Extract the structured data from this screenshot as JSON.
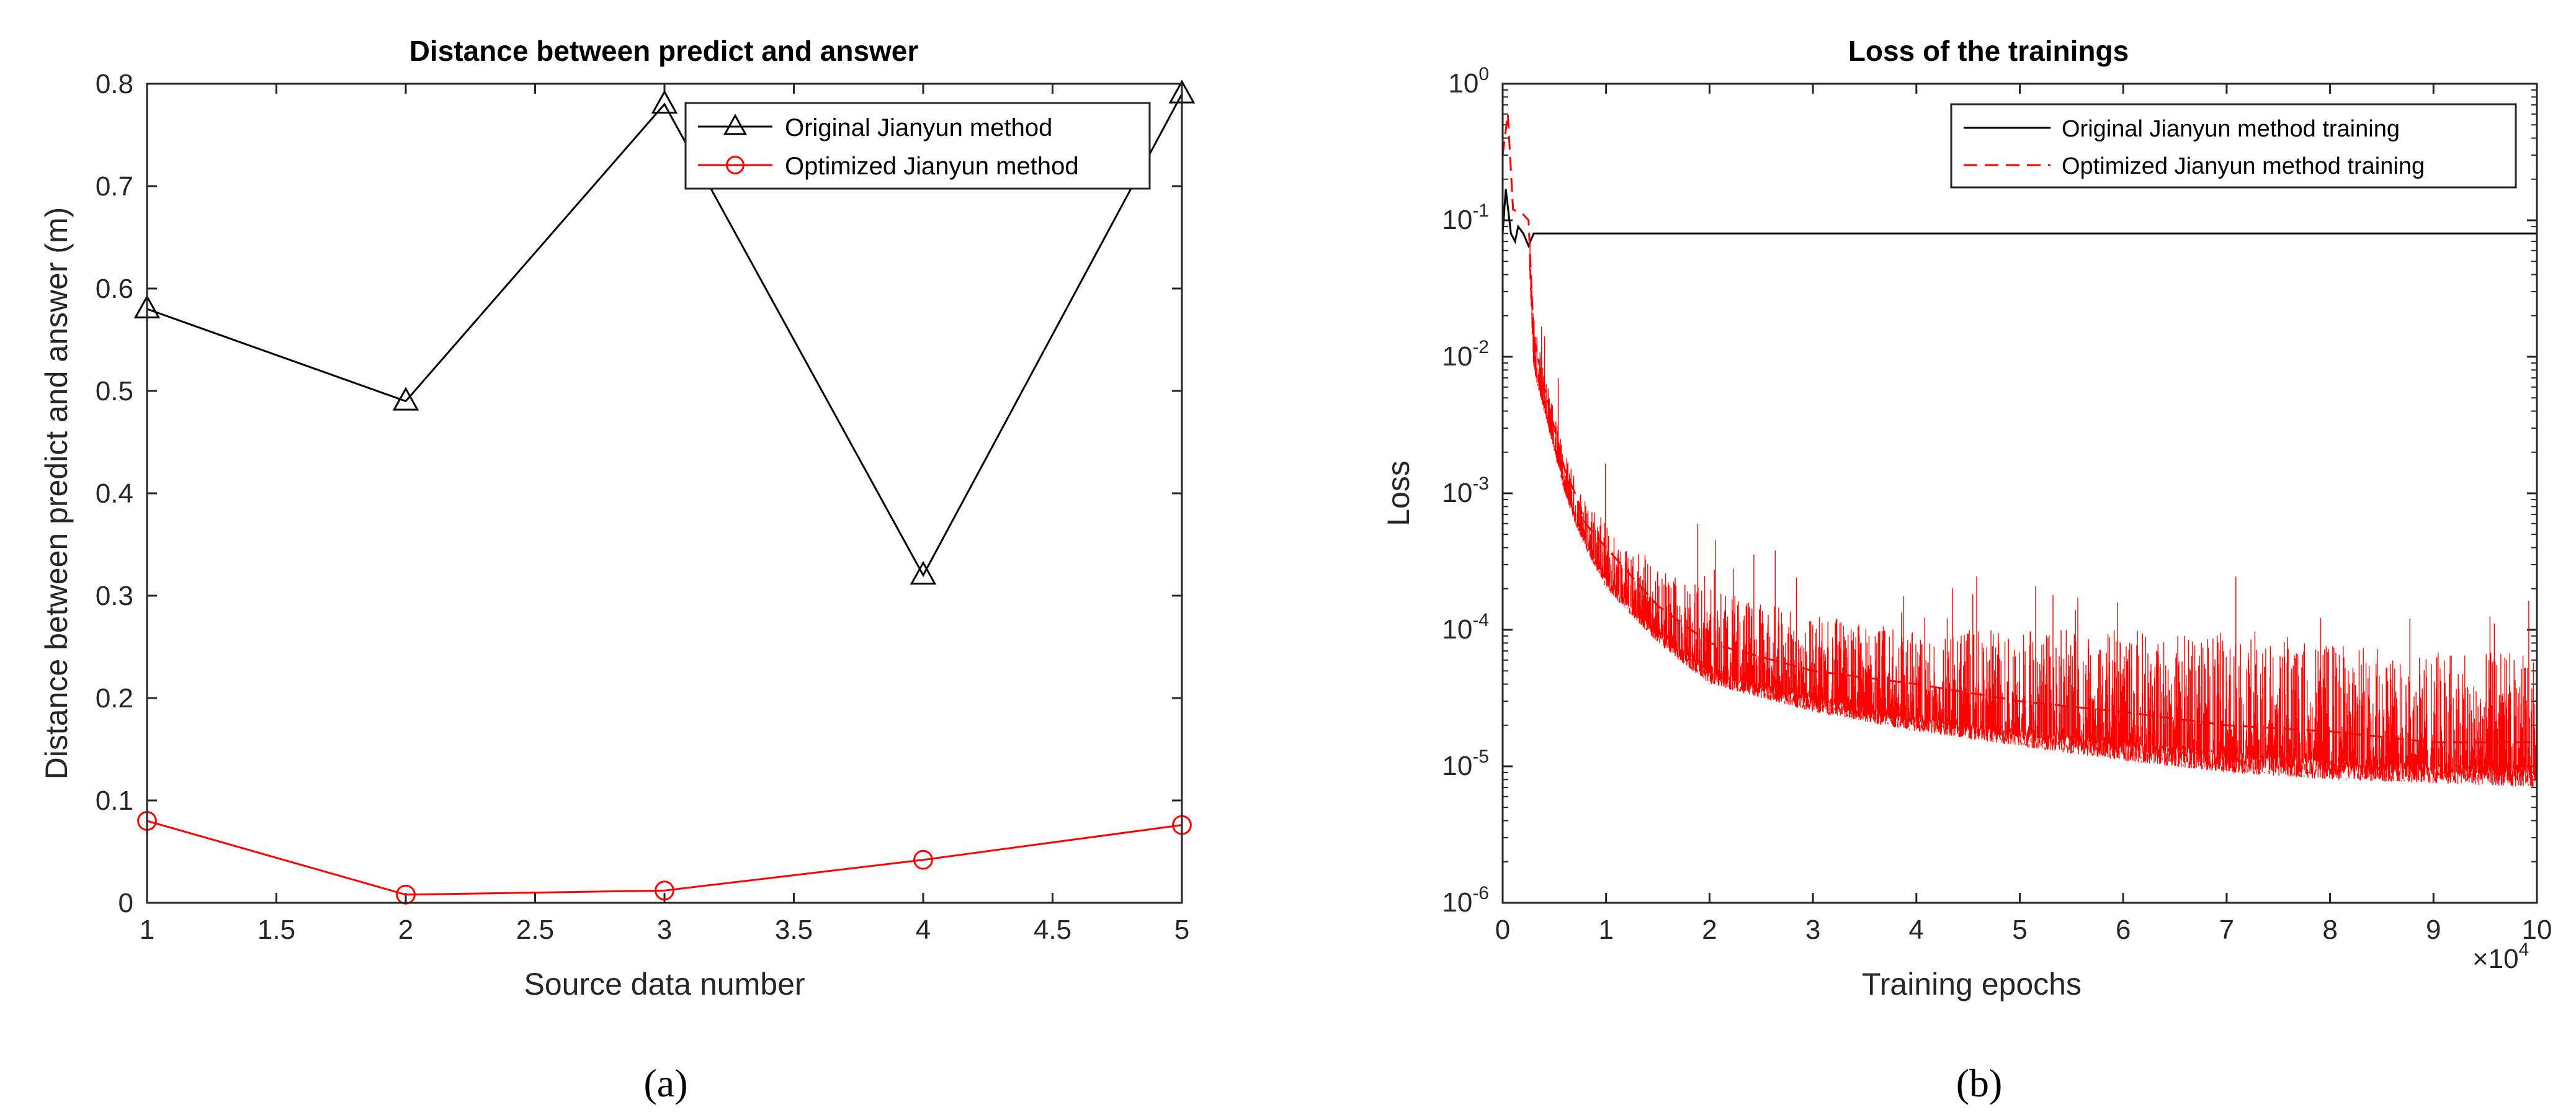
{
  "panel_a_label": "(a)",
  "panel_b_label": "(b)",
  "chart_data": [
    {
      "type": "line",
      "title": "Distance between predict and answer",
      "xlabel": "Source data number",
      "ylabel": "Distance between predict and answer (m)",
      "xlim": [
        1,
        5
      ],
      "ylim": [
        0,
        0.8
      ],
      "x_ticks": [
        1,
        1.5,
        2,
        2.5,
        3,
        3.5,
        4,
        4.5,
        5
      ],
      "x_tick_labels": [
        "1",
        "1.5",
        "2",
        "2.5",
        "3",
        "3.5",
        "4",
        "4.5",
        "5"
      ],
      "y_ticks": [
        0,
        0.1,
        0.2,
        0.3,
        0.4,
        0.5,
        0.6,
        0.7,
        0.8
      ],
      "y_tick_labels": [
        "0",
        "0.1",
        "0.2",
        "0.3",
        "0.4",
        "0.5",
        "0.6",
        "0.7",
        "0.8"
      ],
      "legend_position": "top-right",
      "grid": false,
      "x": [
        1,
        2,
        3,
        4,
        5
      ],
      "series": [
        {
          "name": "Original Jianyun method",
          "color": "#000000",
          "marker": "triangle",
          "values": [
            0.58,
            0.49,
            0.78,
            0.32,
            0.79
          ]
        },
        {
          "name": "Optimized Jianyun method",
          "color": "#ff0000",
          "marker": "circle",
          "values": [
            0.08,
            0.008,
            0.012,
            0.042,
            0.076
          ]
        }
      ]
    },
    {
      "type": "line",
      "title": "Loss of the trainings",
      "xlabel": "Training epochs",
      "ylabel": "Loss",
      "x_multiplier": "×10",
      "x_multiplier_exp": "4",
      "xlim": [
        0,
        100000
      ],
      "ylim": [
        1e-06,
        1
      ],
      "y_scale": "log",
      "x_ticks": [
        0,
        10000,
        20000,
        30000,
        40000,
        50000,
        60000,
        70000,
        80000,
        90000,
        100000
      ],
      "x_tick_labels": [
        "0",
        "1",
        "2",
        "3",
        "4",
        "5",
        "6",
        "7",
        "8",
        "9",
        "10"
      ],
      "y_ticks": [
        1,
        0.1,
        0.01,
        0.001,
        0.0001,
        1e-05,
        1e-06
      ],
      "y_tick_exponents": [
        "0",
        "-1",
        "-2",
        "-3",
        "-4",
        "-5",
        "-6"
      ],
      "y_tick_base": "10",
      "legend_position": "top-right",
      "grid": false,
      "series": [
        {
          "name": "Original Jianyun method training",
          "color": "#000000",
          "style": "solid",
          "x": [
            0,
            300,
            800,
            1200,
            1500,
            2000,
            2500,
            3000,
            5000,
            100000
          ],
          "values": [
            0.08,
            0.17,
            0.08,
            0.07,
            0.09,
            0.08,
            0.065,
            0.08,
            0.08,
            0.08
          ]
        },
        {
          "name": "Optimized Jianyun method training",
          "color": "#ff0000",
          "style": "dashed",
          "x": [
            0,
            500,
            1000,
            2000,
            2500,
            3000,
            4000,
            5000,
            6000,
            7000,
            8000,
            10000,
            15000,
            20000,
            30000,
            40000,
            50000,
            60000,
            70000,
            80000,
            90000,
            100000
          ],
          "values": [
            0.3,
            0.6,
            0.12,
            0.11,
            0.1,
            0.014,
            0.006,
            0.003,
            0.0015,
            0.001,
            0.0006,
            0.0004,
            0.00015,
            8e-05,
            5e-05,
            4e-05,
            3e-05,
            2.5e-05,
            2e-05,
            1.8e-05,
            1.5e-05,
            1.5e-05
          ],
          "noise_band_low": [
            0.3,
            0.5,
            0.1,
            0.08,
            0.06,
            0.008,
            0.004,
            0.002,
            0.001,
            0.0006,
            0.0004,
            0.0002,
            8e-05,
            4e-05,
            2.5e-05,
            1.8e-05,
            1.4e-05,
            1.1e-05,
            9e-06,
            8e-06,
            7.5e-06,
            7e-06
          ],
          "noise_band_high": [
            0.3,
            0.7,
            0.15,
            0.12,
            0.11,
            0.02,
            0.008,
            0.004,
            0.002,
            0.0013,
            0.0009,
            0.0006,
            0.0003,
            0.0002,
            0.00013,
            0.0001,
            0.0001,
            0.0001,
            9e-05,
            8e-05,
            7e-05,
            7e-05
          ]
        }
      ]
    }
  ]
}
